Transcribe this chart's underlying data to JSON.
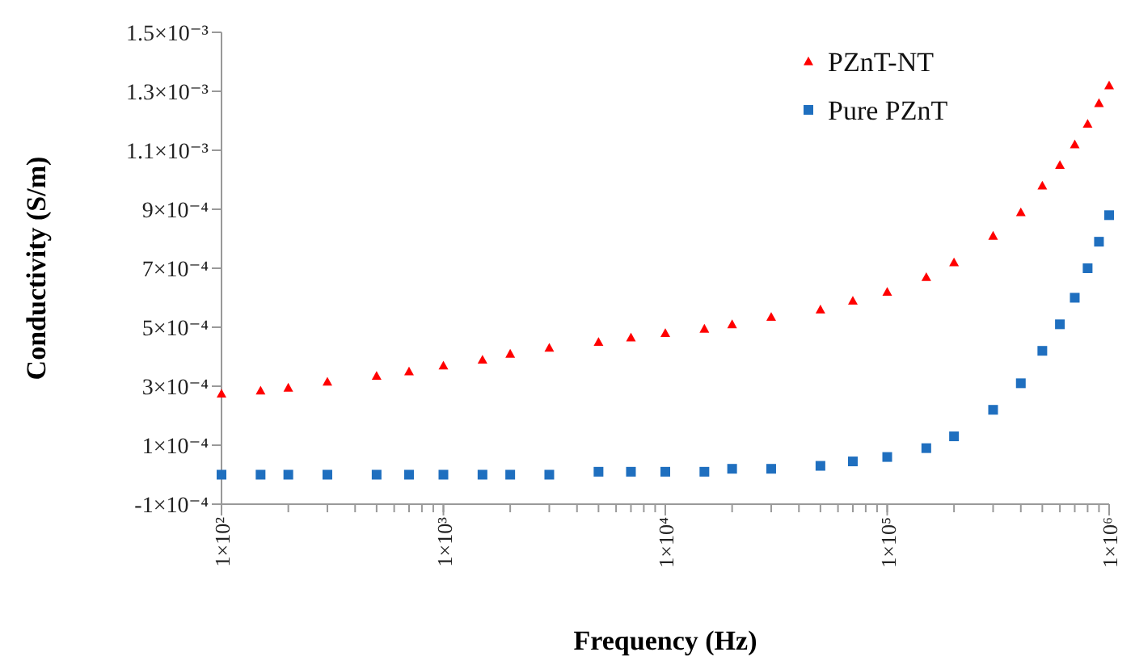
{
  "chart_data": {
    "type": "scatter",
    "xlabel": "Frequency (Hz)",
    "ylabel": "Conductivity (S/m)",
    "log": "x",
    "legend": "top right",
    "grid": false,
    "x": [
      100,
      150,
      200,
      300,
      500,
      700,
      1000,
      1500,
      2000,
      3000,
      5000,
      7000,
      10000,
      15000,
      20000,
      30000,
      50000,
      70000,
      100000,
      150000,
      200000,
      300000,
      400000,
      500000,
      600000,
      700000,
      800000,
      900000,
      1000000
    ],
    "xlim": [
      100,
      1000000
    ],
    "xticks": [
      {
        "value": 100,
        "label": "1×10²"
      },
      {
        "value": 1000,
        "label": "1×10³"
      },
      {
        "value": 10000,
        "label": "1×10⁴"
      },
      {
        "value": 100000,
        "label": "1×10⁵"
      },
      {
        "value": 1000000,
        "label": "1×10⁶"
      }
    ],
    "ylim": [
      -0.0001,
      0.0015
    ],
    "yticks": [
      {
        "value": -0.0001,
        "label": "-1×10⁻⁴"
      },
      {
        "value": 0.0001,
        "label": "1×10⁻⁴"
      },
      {
        "value": 0.0003,
        "label": "3×10⁻⁴"
      },
      {
        "value": 0.0005,
        "label": "5×10⁻⁴"
      },
      {
        "value": 0.0007,
        "label": "7×10⁻⁴"
      },
      {
        "value": 0.0009,
        "label": "9×10⁻⁴"
      },
      {
        "value": 0.0011,
        "label": "1.1×10⁻³"
      },
      {
        "value": 0.0013,
        "label": "1.3×10⁻³"
      },
      {
        "value": 0.0015,
        "label": "1.5×10⁻³"
      }
    ],
    "series": [
      {
        "name": "PZnT-NT",
        "color": "#ff0000",
        "marker": "triangle",
        "values": [
          0.000275,
          0.000285,
          0.000295,
          0.000315,
          0.000335,
          0.00035,
          0.00037,
          0.00039,
          0.00041,
          0.00043,
          0.00045,
          0.000465,
          0.00048,
          0.000495,
          0.00051,
          0.000535,
          0.00056,
          0.00059,
          0.00062,
          0.00067,
          0.00072,
          0.00081,
          0.00089,
          0.00098,
          0.00105,
          0.00112,
          0.00119,
          0.00126,
          0.00132
        ]
      },
      {
        "name": "Pure PZnT",
        "color": "#1f6fbf",
        "marker": "square",
        "values": [
          0,
          0,
          0,
          0,
          0,
          0,
          0,
          0,
          0,
          0,
          1e-05,
          1e-05,
          1e-05,
          1e-05,
          2e-05,
          2e-05,
          3e-05,
          4.5e-05,
          6e-05,
          9e-05,
          0.00013,
          0.00022,
          0.00031,
          0.00042,
          0.00051,
          0.0006,
          0.0007,
          0.00079,
          0.00088
        ]
      }
    ]
  }
}
